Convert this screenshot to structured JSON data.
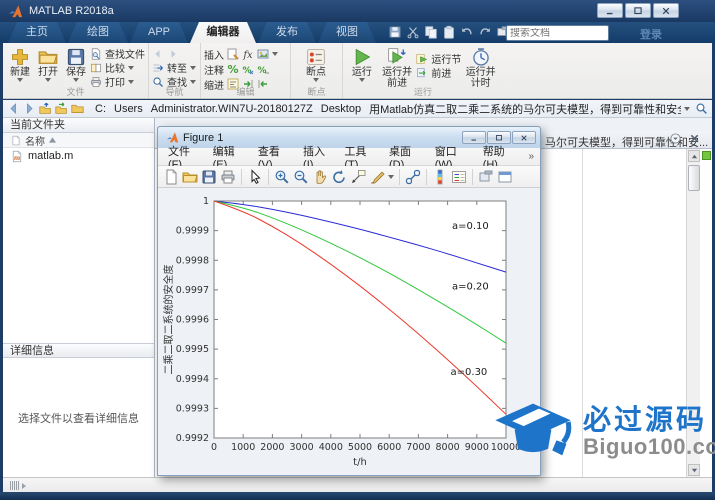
{
  "window": {
    "title": "MATLAB R2018a"
  },
  "tabs": {
    "items": [
      "主页",
      "绘图",
      "APP",
      "编辑器",
      "发布",
      "视图"
    ],
    "active": "编辑器",
    "search_placeholder": "搜索文档",
    "login": "登录"
  },
  "ribbon": {
    "file": {
      "label": "文件",
      "new": "新建",
      "open": "打开",
      "save": "保存",
      "find_files": "查找文件",
      "compare": "比较",
      "print": "打印"
    },
    "nav": {
      "label": "导航",
      "goto": "转至",
      "find": "查找"
    },
    "edit": {
      "label": "编辑",
      "insert": "插入",
      "comment": "注释",
      "indent": "缩进",
      "fx": "fx"
    },
    "bp": {
      "label": "断点",
      "breakpoints": "断点"
    },
    "run": {
      "label": "运行",
      "run": "运行",
      "run_advance_1": "运行并",
      "run_advance_2": "前进",
      "run_section": "运行节",
      "advance": "前进",
      "run_time_1": "运行并",
      "run_time_2": "计时"
    }
  },
  "address_bar": {
    "segments": [
      "C:",
      "Users",
      "Administrator.WIN7U-20180127Z",
      "Desktop",
      "用Matlab仿真二取二乘二系统的马尔可夫模型，得到可靠性和安全性曲线"
    ]
  },
  "current_folder": {
    "title": "当前文件夹",
    "name_column": "名称",
    "files": [
      "matlab.m"
    ]
  },
  "details": {
    "title": "详细信息",
    "placeholder": "选择文件以查看详细信息"
  },
  "editor": {
    "tab_title": "马尔可夫模型，得到可靠性和安..."
  },
  "figure": {
    "title": "Figure 1",
    "menu": [
      "文件(F)",
      "编辑(E)",
      "查看(V)",
      "插入(I)",
      "工具(T)",
      "桌面(D)",
      "窗口(W)",
      "帮助(H)"
    ],
    "menu_overflow": "»"
  },
  "chart_data": {
    "type": "line",
    "title": "",
    "xlabel": "t/h",
    "ylabel": "二乘二取二系统的安全度",
    "xlim": [
      0,
      10000
    ],
    "ylim": [
      0.9992,
      1.0
    ],
    "grid": false,
    "legend_position": "inline-annotations",
    "xticks": [
      0,
      1000,
      2000,
      3000,
      4000,
      5000,
      6000,
      7000,
      8000,
      9000,
      10000
    ],
    "ytick_values": [
      1,
      0.9999,
      0.9998,
      0.9997,
      0.9996,
      0.9995,
      0.9994,
      0.9993,
      0.9992
    ],
    "ytick_labels": [
      "1",
      "0.9999",
      "0.9998",
      "0.9997",
      "0.9996",
      "0.9995",
      "0.9994",
      "0.9993",
      "0.9992"
    ],
    "x": [
      0,
      1000,
      2000,
      3000,
      4000,
      5000,
      6000,
      7000,
      8000,
      9000,
      10000
    ],
    "series": [
      {
        "name": "a=0.10",
        "color": "#2a2ad8",
        "values": [
          1,
          0.999989,
          0.999972,
          0.999952,
          0.999929,
          0.999905,
          0.999878,
          0.999851,
          0.999822,
          0.999791,
          0.99976
        ]
      },
      {
        "name": "a=0.20",
        "color": "#2ec83a",
        "values": [
          1,
          0.999978,
          0.999944,
          0.999903,
          0.999858,
          0.999809,
          0.999757,
          0.999701,
          0.999643,
          0.999583,
          0.99952
        ]
      },
      {
        "name": "a=0.30",
        "color": "#ea3a2d",
        "values": [
          1,
          0.999966,
          0.999915,
          0.999855,
          0.999787,
          0.999714,
          0.999635,
          0.999552,
          0.999465,
          0.999374,
          0.99928
        ]
      }
    ],
    "annotations": [
      {
        "text": "a=0.10",
        "x": 8150,
        "y": 0.999915
      },
      {
        "text": "a=0.20",
        "x": 8150,
        "y": 0.999712
      },
      {
        "text": "a=0.30",
        "x": 8100,
        "y": 0.999422
      }
    ]
  },
  "watermark": {
    "cn": "必过源码",
    "en": "Biguo100.com",
    "blue": "#1e74c9",
    "gray": "#8c8c8c"
  }
}
